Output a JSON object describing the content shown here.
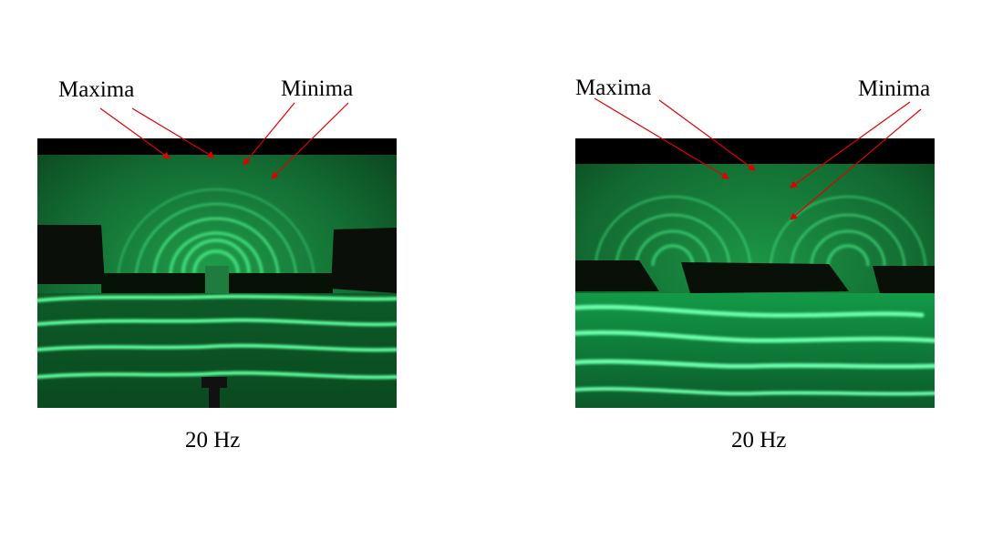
{
  "panels": [
    {
      "label_left": "Maxima",
      "label_right": "Minima",
      "caption": "20 Hz",
      "image": "single-slit-diffraction-ripple-tank"
    },
    {
      "label_left": "Maxima",
      "label_right": "Minima",
      "caption": "20 Hz",
      "image": "double-slit-interference-ripple-tank"
    }
  ],
  "colors": {
    "wave": "#2fd56f",
    "background": "#000000",
    "arrow": "#e00000"
  }
}
